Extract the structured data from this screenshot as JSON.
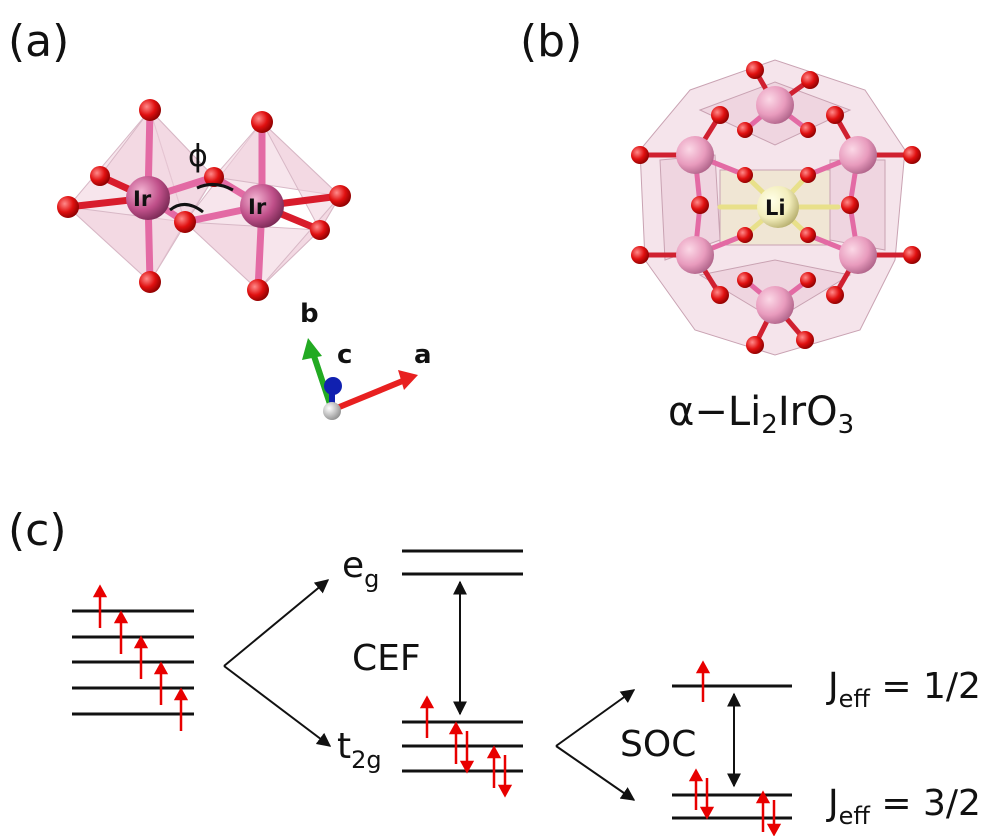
{
  "panels": {
    "a": "(a)",
    "b": "(b)",
    "c": "(c)"
  },
  "panel_a": {
    "atom_labels": [
      "Ir",
      "Ir"
    ],
    "angle_symbol": "ϕ",
    "axes": {
      "a": "a",
      "b": "b",
      "c": "c"
    }
  },
  "panel_b": {
    "center_atom": "Li",
    "formula": {
      "prefix": "α−Li",
      "sub1": "2",
      "mid": "IrO",
      "sub2": "3"
    }
  },
  "panel_c": {
    "eg": {
      "base": "e",
      "sub": "g"
    },
    "t2g": {
      "base": "t",
      "sub": "2g"
    },
    "cef": "CEF",
    "soc": "SOC",
    "jeff_half": {
      "base": "J",
      "sub": "eff",
      "value": " = 1/2"
    },
    "jeff_three_half": {
      "base": "J",
      "sub": "eff",
      "value": " = 3/2"
    }
  },
  "colors": {
    "oxygen": "#e01010",
    "iridium": "#c0508a",
    "octahedron": "#f0d0dc",
    "lithium": "#f3eebc",
    "spin_arrow": "#e80000",
    "axis_a": "#e82020",
    "axis_b": "#22aa22",
    "axis_c": "#1020b0"
  }
}
